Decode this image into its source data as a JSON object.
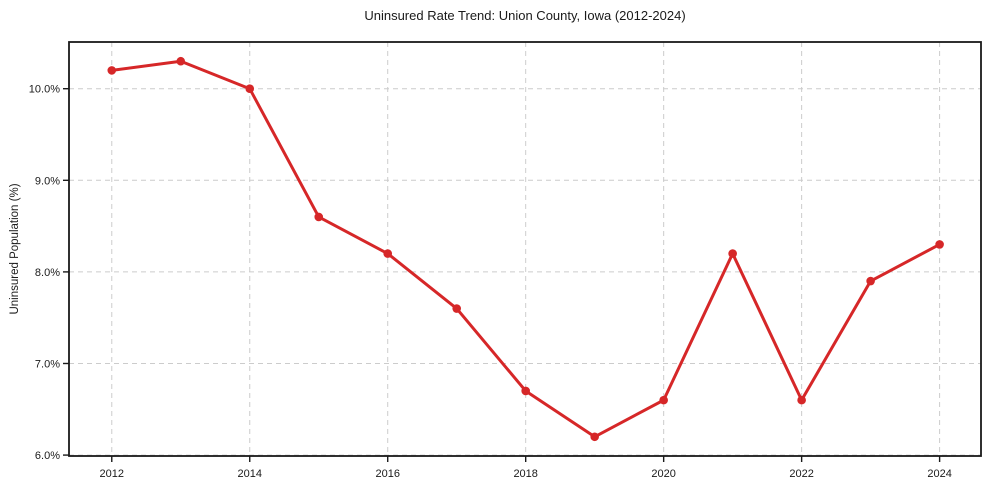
{
  "figure": {
    "background": "#ffffff"
  },
  "chart_data": {
    "type": "line",
    "title": "Uninsured Rate Trend: Union County, Iowa (2012-2024)",
    "xlabel": "",
    "ylabel": "Uninsured Population (%)",
    "x": [
      2012,
      2013,
      2014,
      2015,
      2016,
      2017,
      2018,
      2019,
      2020,
      2021,
      2022,
      2023,
      2024
    ],
    "series": [
      {
        "name": "Uninsured rate",
        "color": "#d62728",
        "marker": "circle",
        "values": [
          10.2,
          10.3,
          10.0,
          8.6,
          8.2,
          7.6,
          6.7,
          6.2,
          6.6,
          8.2,
          6.6,
          7.9,
          8.3
        ]
      }
    ],
    "xlim": [
      2011.38,
      2024.6
    ],
    "ylim": [
      5.99,
      10.51
    ],
    "xticks": [
      {
        "value": 2012,
        "label": "2012"
      },
      {
        "value": 2014,
        "label": "2014"
      },
      {
        "value": 2016,
        "label": "2016"
      },
      {
        "value": 2018,
        "label": "2018"
      },
      {
        "value": 2020,
        "label": "2020"
      },
      {
        "value": 2022,
        "label": "2022"
      },
      {
        "value": 2024,
        "label": "2024"
      }
    ],
    "yticks": [
      {
        "value": 6.0,
        "label": "6.0%"
      },
      {
        "value": 7.0,
        "label": "7.0%"
      },
      {
        "value": 8.0,
        "label": "8.0%"
      },
      {
        "value": 9.0,
        "label": "9.0%"
      },
      {
        "value": 10.0,
        "label": "10.0%"
      }
    ],
    "grid": {
      "visible": true,
      "style": "dashed",
      "color": "#cccccc"
    },
    "legend": "none",
    "axis_color": "#1a1a1a",
    "text_color": "#1a1a1a"
  }
}
